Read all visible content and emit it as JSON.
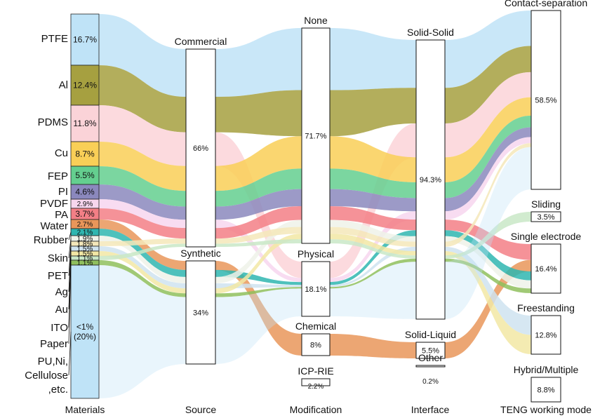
{
  "chart_data": {
    "type": "sankey",
    "axes": [
      {
        "key": "materials",
        "label": "Materials"
      },
      {
        "key": "source",
        "label": "Source"
      },
      {
        "key": "modification",
        "label": "Modification"
      },
      {
        "key": "interface",
        "label": "Interface"
      },
      {
        "key": "mode",
        "label": "TENG working mode"
      }
    ],
    "materials": [
      {
        "name": "PTFE",
        "value": 16.7,
        "pct_label": "16.7%",
        "color": "#bfe3f7"
      },
      {
        "name": "Al",
        "value": 12.4,
        "pct_label": "12.4%",
        "color": "#a6a040"
      },
      {
        "name": "PDMS",
        "value": 11.8,
        "pct_label": "11.8%",
        "color": "#fbd3d8"
      },
      {
        "name": "Cu",
        "value": 8.7,
        "pct_label": "8.7%",
        "color": "#f9cf57"
      },
      {
        "name": "FEP",
        "value": 5.5,
        "pct_label": "5.5%",
        "color": "#64cf8f"
      },
      {
        "name": "PI",
        "value": 4.6,
        "pct_label": "4.6%",
        "color": "#8b88bd"
      },
      {
        "name": "PVDF",
        "value": 2.9,
        "pct_label": "2.9%",
        "color": "#f7d6ee"
      },
      {
        "name": "PA",
        "value": 3.7,
        "pct_label": "3.7%",
        "color": "#f37f86"
      },
      {
        "name": "Water",
        "value": 2.7,
        "pct_label": "2.7%",
        "color": "#e9965a"
      },
      {
        "name": "Rubber",
        "value": 2.1,
        "pct_label": "2.1%",
        "color": "#2fb6b0"
      },
      {
        "name": "Skin",
        "value": 1.9,
        "pct_label": "1.9%",
        "color": "#eef2e9"
      },
      {
        "name": "PET",
        "value": 1.8,
        "pct_label": "1.8%",
        "color": "#f4e7ba"
      },
      {
        "name": "Ag",
        "value": 1.5,
        "pct_label": "1.5%",
        "color": "#cfe3f0"
      },
      {
        "name": "Au",
        "value": 1.5,
        "pct_label": "1.5%",
        "color": "#f2e7a4"
      },
      {
        "name": "ITO",
        "value": 1.1,
        "pct_label": "1.1%",
        "color": "#c9e8c7"
      },
      {
        "name": "Paper",
        "value": 1.1,
        "pct_label": "1.1%",
        "color": "#8fbf5d"
      },
      {
        "name": "PU,Ni,\nCellulose\n,etc.",
        "value": 20,
        "pct_label": "<1%\n(20%)",
        "color": "#bfe3f7"
      }
    ],
    "source": [
      {
        "name": "Commercial",
        "value": 66,
        "pct_label": "66%"
      },
      {
        "name": "Synthetic",
        "value": 34,
        "pct_label": "34%"
      }
    ],
    "modification": [
      {
        "name": "None",
        "value": 71.7,
        "pct_label": "71.7%"
      },
      {
        "name": "Physical",
        "value": 18.1,
        "pct_label": "18.1%"
      },
      {
        "name": "Chemical",
        "value": 8,
        "pct_label": "8%"
      },
      {
        "name": "ICP-RIE",
        "value": 2.2,
        "pct_label": "2.2%"
      }
    ],
    "interface": [
      {
        "name": "Solid-Solid",
        "value": 94.3,
        "pct_label": "94.3%"
      },
      {
        "name": "Solid-Liquid",
        "value": 5.5,
        "pct_label": "5.5%"
      },
      {
        "name": "Other",
        "value": 0.2,
        "pct_label": "0.2%"
      }
    ],
    "mode": [
      {
        "name": "Contact-separation",
        "value": 58.5,
        "pct_label": "58.5%"
      },
      {
        "name": "Sliding",
        "value": 3.5,
        "pct_label": "3.5%"
      },
      {
        "name": "Single electrode",
        "value": 16.4,
        "pct_label": "16.4%"
      },
      {
        "name": "Freestanding",
        "value": 12.8,
        "pct_label": "12.8%"
      },
      {
        "name": "Hybrid/Multiple",
        "value": 8.8,
        "pct_label": "8.8%"
      }
    ]
  }
}
